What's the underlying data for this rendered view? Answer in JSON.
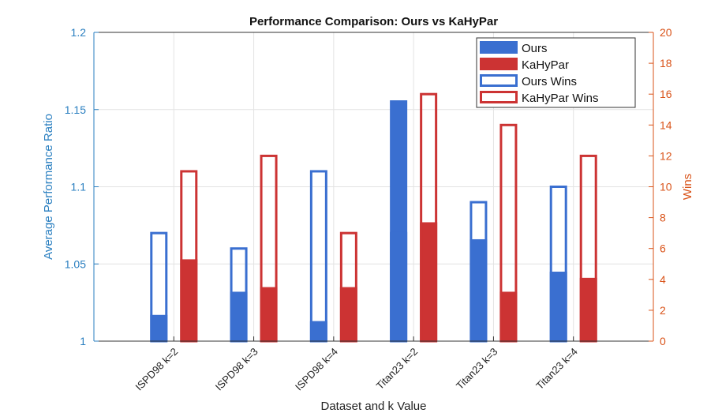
{
  "chart_data": {
    "type": "bar",
    "title": "Performance Comparison: Ours vs KaHyPar",
    "xlabel": "Dataset and k Value",
    "ylabel_left": "Average Performance Ratio",
    "ylabel_right": "Wins",
    "categories": [
      "ISPD98 k=2",
      "ISPD98 k=3",
      "ISPD98 k=4",
      "Titan23 k=2",
      "Titan23 k=3",
      "Titan23 k=4"
    ],
    "ylim_left": [
      1,
      1.2
    ],
    "ylim_right": [
      0,
      20
    ],
    "yticks_left": [
      "1",
      "1.05",
      "1.1",
      "1.15",
      "1.2"
    ],
    "yticks_right": [
      "0",
      "2",
      "4",
      "6",
      "8",
      "10",
      "12",
      "14",
      "16",
      "18",
      "20"
    ],
    "series": [
      {
        "name": "Ours",
        "axis": "left",
        "style": "filled",
        "color": "#3a6fd0",
        "values": [
          1.017,
          1.032,
          1.013,
          1.156,
          1.066,
          1.045
        ]
      },
      {
        "name": "KaHyPar",
        "axis": "left",
        "style": "filled",
        "color": "#cc3333",
        "values": [
          1.053,
          1.035,
          1.035,
          1.077,
          1.032,
          1.041
        ]
      },
      {
        "name": "Ours Wins",
        "axis": "right",
        "style": "outline",
        "color": "#3a6fd0",
        "values": [
          7,
          6,
          11,
          7,
          9,
          10
        ]
      },
      {
        "name": "KaHyPar Wins",
        "axis": "right",
        "style": "outline",
        "color": "#cc3333",
        "values": [
          11,
          12,
          7,
          16,
          14,
          12
        ]
      }
    ],
    "legend_position": "top-right",
    "grid": true
  },
  "colors": {
    "left_axis": "#2a7fc0",
    "right_axis": "#d95319",
    "ours": "#3a6fd0",
    "kahypar": "#cc3333"
  }
}
